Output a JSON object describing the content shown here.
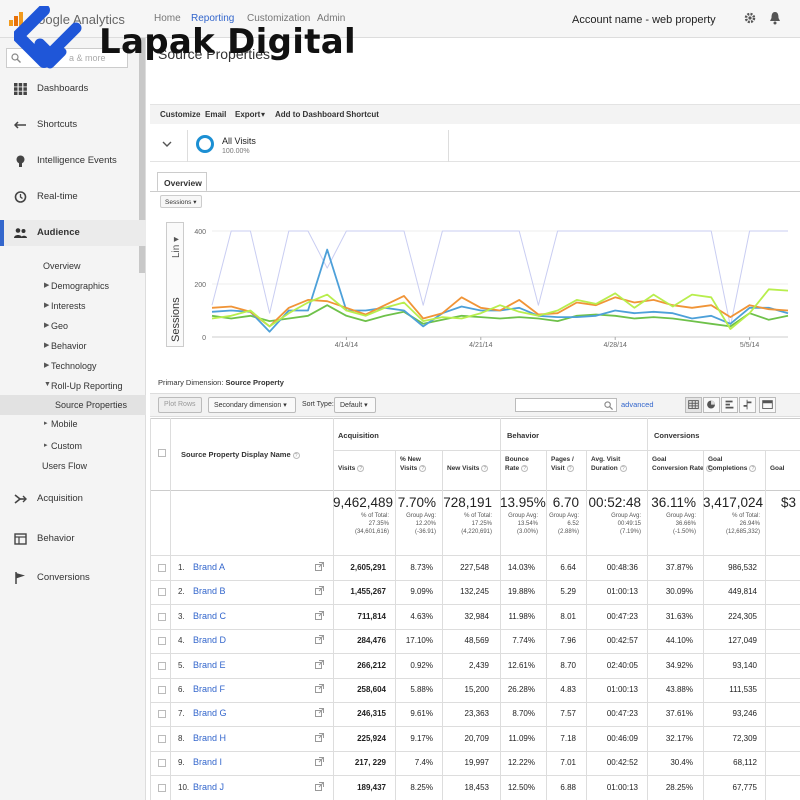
{
  "app": {
    "title": "Google Analytics",
    "account": "Account name - web property"
  },
  "watermark": {
    "text": "Lapak Digital"
  },
  "topnav": [
    "Home",
    "Reporting",
    "Customization",
    "Admin"
  ],
  "sidebar": {
    "search_placeholder": "a & more",
    "main_items": [
      "Dashboards",
      "Shortcuts",
      "Intelligence Events",
      "Real-time",
      "Audience",
      "Acquisition",
      "Behavior",
      "Conversions"
    ],
    "audience_items": [
      "Overview",
      "Demographics",
      "Interests",
      "Geo",
      "Behavior",
      "Technology",
      "Roll-Up Reporting",
      "Source Properties",
      "Mobile",
      "Custom",
      "Users Flow"
    ]
  },
  "page": {
    "title": "Source Properties"
  },
  "toolbar": [
    "Customize",
    "Email",
    "Export",
    "Add to Dashboard",
    "Shortcut"
  ],
  "segment": {
    "name": "All Visits",
    "percent": "100.00%"
  },
  "tab": "Overview",
  "metric_select": "Sessions",
  "chart_data": {
    "type": "line",
    "ylabel": "Sessions",
    "y_ticks": [
      "400",
      "200",
      "0"
    ],
    "x_ticks": [
      "4/14/14",
      "4/21/14",
      "4/28/14",
      "5/5/14"
    ],
    "ylim": [
      0,
      400
    ],
    "series": [
      {
        "color": "#b8ee4d",
        "values": [
          70,
          80,
          100,
          40,
          90,
          130,
          160,
          100,
          80,
          110,
          130,
          60,
          75,
          70,
          90,
          120,
          95,
          80,
          100,
          140,
          125,
          165,
          110,
          160,
          115,
          160,
          150,
          30,
          90,
          180,
          175
        ]
      },
      {
        "color": "#f09437",
        "values": [
          110,
          115,
          95,
          40,
          110,
          140,
          135,
          110,
          85,
          120,
          155,
          70,
          90,
          150,
          110,
          100,
          140,
          85,
          90,
          130,
          120,
          150,
          130,
          140,
          120,
          110,
          120,
          75,
          120,
          105,
          100
        ]
      },
      {
        "color": "#4da0d9",
        "values": [
          95,
          100,
          95,
          20,
          100,
          100,
          330,
          100,
          100,
          110,
          100,
          40,
          90,
          115,
          100,
          100,
          110,
          80,
          75,
          75,
          80,
          100,
          90,
          95,
          90,
          70,
          80,
          50,
          110,
          110,
          90
        ]
      },
      {
        "color": "#6ec14a",
        "values": [
          80,
          70,
          80,
          60,
          70,
          80,
          120,
          80,
          60,
          80,
          95,
          50,
          65,
          80,
          75,
          70,
          75,
          70,
          60,
          80,
          85,
          80,
          70,
          75,
          70,
          60,
          50,
          40,
          90,
          65,
          80
        ]
      },
      {
        "color": "#c9cdf2",
        "values": [
          120,
          400,
          400,
          90,
          400,
          400,
          260,
          400,
          400,
          400,
          400,
          120,
          400,
          400,
          400,
          400,
          400,
          120,
          400,
          400,
          400,
          400,
          400,
          400,
          400,
          400,
          400,
          40,
          400,
          400,
          400
        ]
      }
    ]
  },
  "primary_dimension": {
    "label": "Primary Dimension:",
    "value": "Source Property"
  },
  "controls": {
    "plot_rows": "Plot Rows",
    "secondary_dimension": "Secondary dimension",
    "sort_label": "Sort Type:",
    "sort_value": "Default",
    "advanced": "advanced"
  },
  "table": {
    "col_name": "Source Property Display Name",
    "groups": [
      "Acquisition",
      "Behavior",
      "Conversions"
    ],
    "columns": [
      {
        "label1": "Visits",
        "label2": ""
      },
      {
        "label1": "% New",
        "label2": "Visits"
      },
      {
        "label1": "New Visits",
        "label2": ""
      },
      {
        "label1": "Bounce",
        "label2": "Rate"
      },
      {
        "label1": "Pages /",
        "label2": "Visit"
      },
      {
        "label1": "Avg. Visit",
        "label2": "Duration"
      },
      {
        "label1": "Goal",
        "label2": "Conversion Rate"
      },
      {
        "label1": "Goal",
        "label2": "Completions"
      },
      {
        "label1": "Goal",
        "label2": ""
      }
    ],
    "totals": [
      {
        "value": "9,462,489",
        "sub1": "% of Total:",
        "sub2": "27.35%",
        "sub3": "(34,601,616)"
      },
      {
        "value": "7.70%",
        "sub1": "Group Avg:",
        "sub2": "12.20%",
        "sub3": "(-36.91)"
      },
      {
        "value": "728,191",
        "sub1": "% of Total:",
        "sub2": "17.25%",
        "sub3": "(4,220,691)"
      },
      {
        "value": "13.95%",
        "sub1": "Group Avg:",
        "sub2": "13.54%",
        "sub3": "(3.00%)"
      },
      {
        "value": "6.70",
        "sub1": "Group Avg:",
        "sub2": "6.52",
        "sub3": "(2.88%)"
      },
      {
        "value": "00:52:48",
        "sub1": "Group Avg:",
        "sub2": "00:49:15",
        "sub3": "(7.19%)"
      },
      {
        "value": "36.11%",
        "sub1": "Group Avg:",
        "sub2": "36.66%",
        "sub3": "(-1.50%)"
      },
      {
        "value": "3,417,024",
        "sub1": "% of Total:",
        "sub2": "26.94%",
        "sub3": "(12,685,332)"
      },
      {
        "value": "$3",
        "sub1": "",
        "sub2": "",
        "sub3": ""
      }
    ],
    "rows": [
      {
        "rank": "1.",
        "name": "Brand A",
        "cells": [
          "2,605,291",
          "8.73%",
          "227,548",
          "14.03%",
          "6.64",
          "00:48:36",
          "37.87%",
          "986,532"
        ]
      },
      {
        "rank": "2.",
        "name": "Brand B",
        "cells": [
          "1,455,267",
          "9.09%",
          "132,245",
          "19.88%",
          "5.29",
          "01:00:13",
          "30.09%",
          "449,814"
        ]
      },
      {
        "rank": "3.",
        "name": "Brand C",
        "cells": [
          "711,814",
          "4.63%",
          "32,984",
          "11.98%",
          "8.01",
          "00:47:23",
          "31.63%",
          "224,305"
        ]
      },
      {
        "rank": "4.",
        "name": "Brand D",
        "cells": [
          "284,476",
          "17.10%",
          "48,569",
          "7.74%",
          "7.96",
          "00:42:57",
          "44.10%",
          "127,049"
        ]
      },
      {
        "rank": "5.",
        "name": "Brand E",
        "cells": [
          "266,212",
          "0.92%",
          "2,439",
          "12.61%",
          "8.70",
          "02:40:05",
          "34.92%",
          "93,140"
        ]
      },
      {
        "rank": "6.",
        "name": "Brand F",
        "cells": [
          "258,604",
          "5.88%",
          "15,200",
          "26.28%",
          "4.83",
          "01:00:13",
          "43.88%",
          "111,535"
        ]
      },
      {
        "rank": "7.",
        "name": "Brand G",
        "cells": [
          "246,315",
          "9.61%",
          "23,363",
          "8.70%",
          "7.57",
          "00:47:23",
          "37.61%",
          "93,246"
        ]
      },
      {
        "rank": "8.",
        "name": "Brand H",
        "cells": [
          "225,924",
          "9.17%",
          "20,709",
          "11.09%",
          "7.18",
          "00:46:09",
          "32.17%",
          "72,309"
        ]
      },
      {
        "rank": "9.",
        "name": "Brand I",
        "cells": [
          "217, 229",
          "7.4%",
          "19,997",
          "12.22%",
          "7.01",
          "00:42:52",
          "30.4%",
          "68,112"
        ]
      },
      {
        "rank": "10.",
        "name": "Brand J",
        "cells": [
          "189,437",
          "8.25%",
          "18,453",
          "12.50%",
          "6.88",
          "01:00:13",
          "28.25%",
          "67,775"
        ]
      }
    ]
  }
}
